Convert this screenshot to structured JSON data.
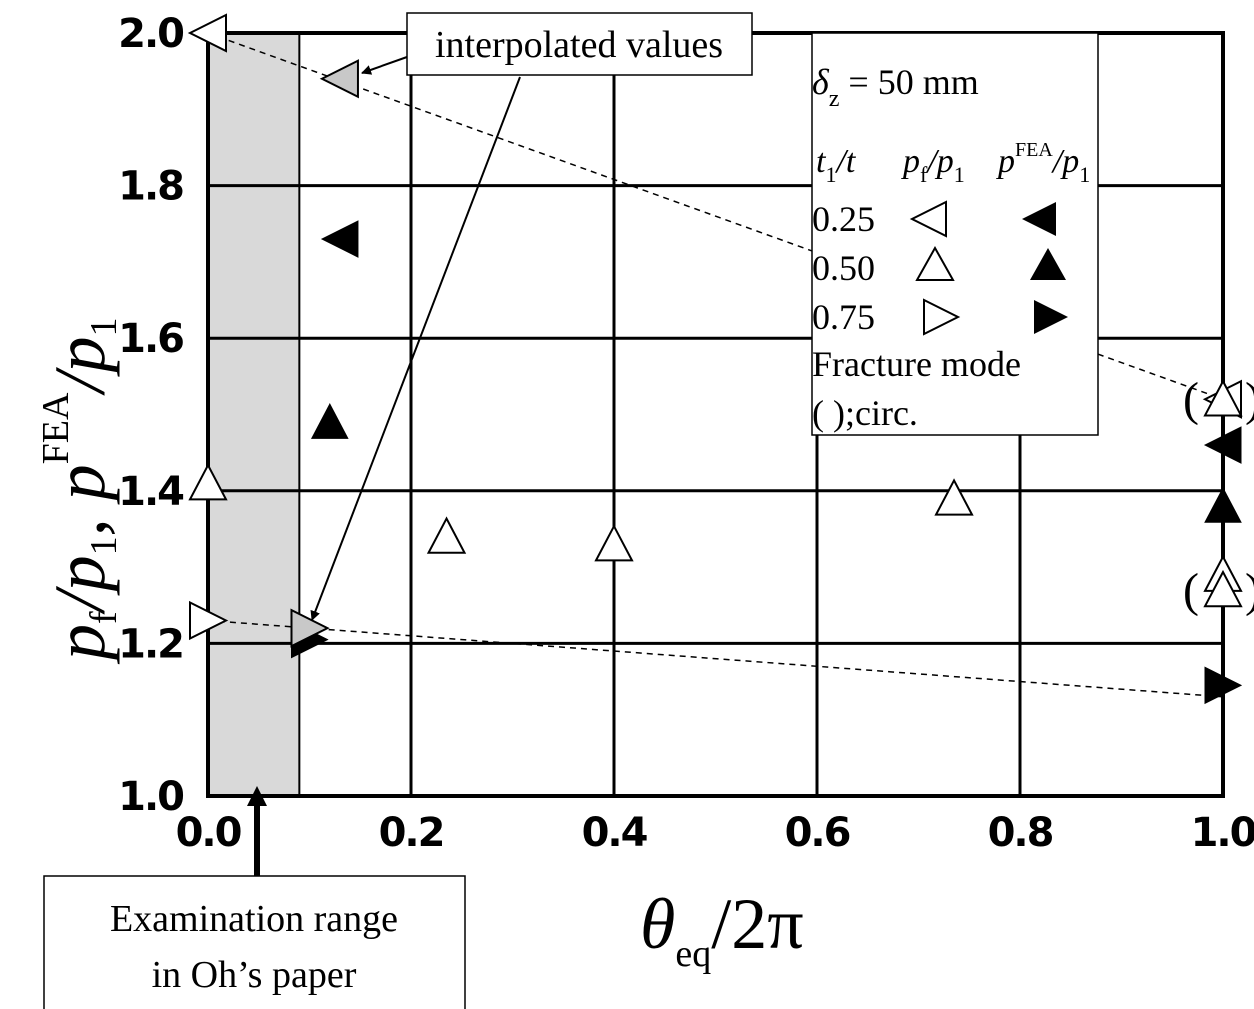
{
  "chart_data": {
    "type": "scatter",
    "xlabel": {
      "main": "θ",
      "sub": "eq",
      "tail": "/2π"
    },
    "ylabel": {
      "parts": [
        "p",
        "f",
        "/p",
        "1",
        ", p",
        "FEA",
        "/p",
        "1"
      ]
    },
    "xlim": [
      0.0,
      1.0
    ],
    "ylim": [
      1.0,
      2.0
    ],
    "x_ticks": [
      "0.0",
      "0.2",
      "0.4",
      "0.6",
      "0.8",
      "1.0"
    ],
    "y_ticks": [
      "1.0",
      "1.2",
      "1.4",
      "1.6",
      "1.8",
      "2.0"
    ],
    "x_tick_values": [
      0.0,
      0.2,
      0.4,
      0.6,
      0.8,
      1.0
    ],
    "y_tick_values": [
      1.0,
      1.2,
      1.4,
      1.6,
      1.8,
      2.0
    ],
    "grid": true,
    "shaded_range": [
      0.0,
      0.09
    ],
    "legend": {
      "delta_line": {
        "symbol": "δ",
        "sub": "z",
        "rest": " = 50 mm"
      },
      "header": {
        "c1": "t",
        "c1sub": "1",
        "c1tail": "/t",
        "c2": "p",
        "c2sub": "f",
        "c2tail": "/p",
        "c2sub2": "1",
        "c3": "p",
        "c3sup": "FEA",
        "c3tail": "/p",
        "c3sub2": "1"
      },
      "rows": [
        "0.25",
        "0.50",
        "0.75"
      ],
      "fracture_label": "Fracture mode",
      "circ_label": "(  );circ."
    },
    "series": [
      {
        "name": "0.25",
        "kind": "pf/p1",
        "marker": "left",
        "fill": "open",
        "points": [
          [
            0.0,
            2.0
          ],
          [
            1.0,
            1.52
          ]
        ]
      },
      {
        "name": "0.25",
        "kind": "pFEA/p1",
        "marker": "left",
        "fill": "filled",
        "points": [
          [
            0.13,
            1.73
          ],
          [
            1.0,
            1.46
          ]
        ]
      },
      {
        "name": "0.25",
        "kind": "interpolated",
        "marker": "left",
        "fill": "gray",
        "points": [
          [
            0.13,
            1.94
          ]
        ]
      },
      {
        "name": "0.50",
        "kind": "pf/p1",
        "marker": "up",
        "fill": "open",
        "points": [
          [
            0.0,
            1.41
          ],
          [
            0.235,
            1.34
          ],
          [
            0.4,
            1.33
          ],
          [
            0.735,
            1.39
          ],
          [
            1.0,
            1.52
          ],
          [
            1.0,
            1.29
          ],
          [
            1.0,
            1.27
          ]
        ]
      },
      {
        "name": "0.50",
        "kind": "pFEA/p1",
        "marker": "up",
        "fill": "filled",
        "points": [
          [
            0.12,
            1.49
          ],
          [
            1.0,
            1.38
          ]
        ]
      },
      {
        "name": "0.75",
        "kind": "pf/p1",
        "marker": "right",
        "fill": "open",
        "points": [
          [
            0.0,
            1.23
          ]
        ]
      },
      {
        "name": "0.75",
        "kind": "pFEA/p1",
        "marker": "right",
        "fill": "filled",
        "points": [
          [
            0.1,
            1.205
          ],
          [
            1.0,
            1.145
          ]
        ]
      },
      {
        "name": "0.75",
        "kind": "interpolated",
        "marker": "right",
        "fill": "gray",
        "points": [
          [
            0.1,
            1.22
          ]
        ]
      }
    ],
    "dashed_lines": [
      {
        "points": [
          [
            0.0,
            2.0
          ],
          [
            1.0,
            1.52
          ]
        ]
      },
      {
        "points": [
          [
            0.0,
            1.23
          ],
          [
            1.0,
            1.13
          ]
        ]
      }
    ],
    "circ_points": [
      [
        1.0,
        1.52
      ],
      [
        1.0,
        1.27
      ]
    ],
    "annotations": {
      "interpolated": "interpolated values",
      "examination_line1": "Examination range",
      "examination_line2": "in Oh’s paper"
    }
  }
}
